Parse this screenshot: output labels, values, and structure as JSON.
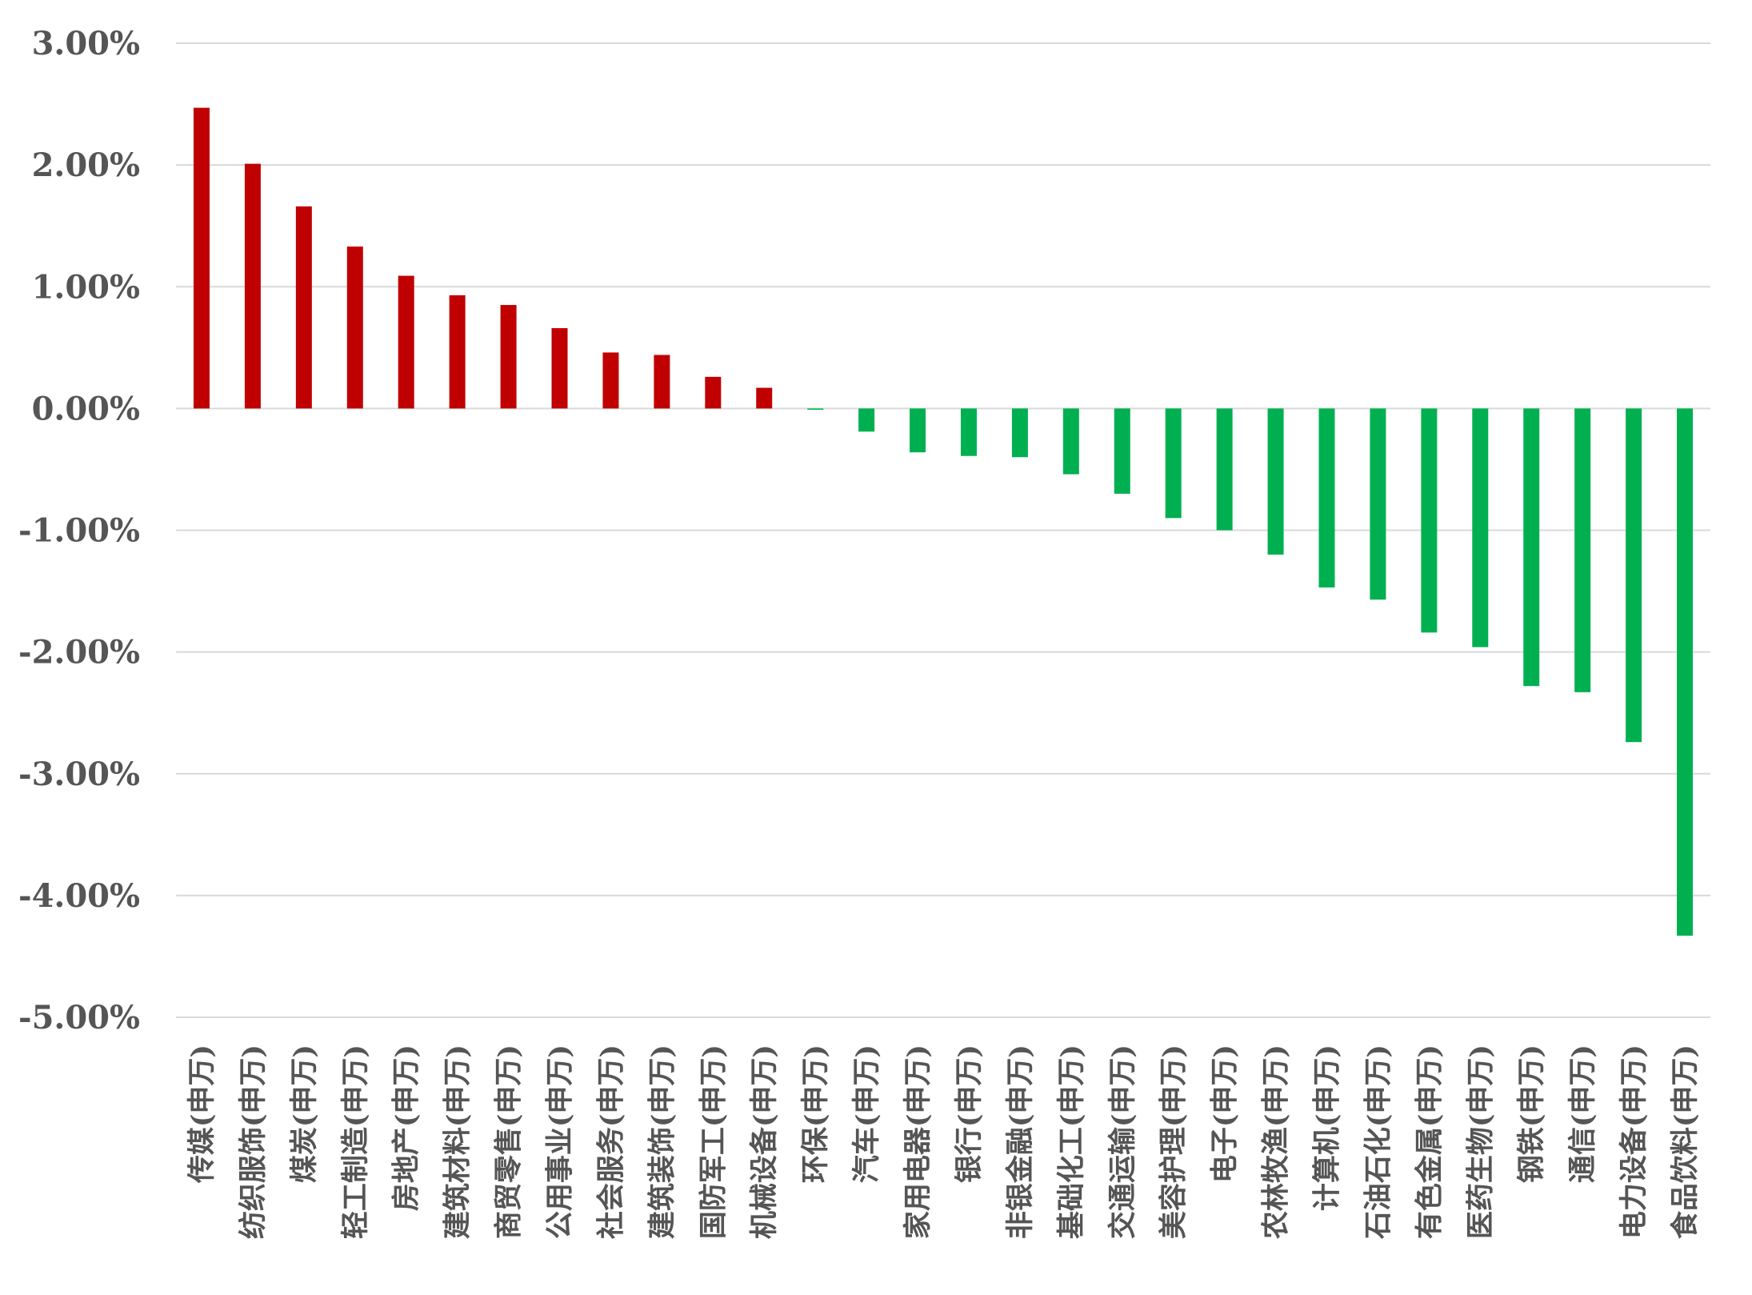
{
  "chart_data": {
    "type": "bar",
    "title": "",
    "xlabel": "",
    "ylabel": "",
    "ylim": [
      -5,
      3
    ],
    "yticks": [
      3,
      2,
      1,
      0,
      -1,
      -2,
      -3,
      -4,
      -5
    ],
    "ytick_labels": [
      "3.00%",
      "2.00%",
      "1.00%",
      "0.00%",
      "-1.00%",
      "-2.00%",
      "-3.00%",
      "-4.00%",
      "-5.00%"
    ],
    "grid": true,
    "legend": "none",
    "colors": {
      "positive": "#C00000",
      "negative": "#00B050",
      "grid": "#D9D9D9",
      "text": "#555555"
    },
    "categories": [
      "传媒(申万)",
      "纺织服饰(申万)",
      "煤炭(申万)",
      "轻工制造(申万)",
      "房地产(申万)",
      "建筑材料(申万)",
      "商贸零售(申万)",
      "公用事业(申万)",
      "社会服务(申万)",
      "建筑装饰(申万)",
      "国防军工(申万)",
      "机械设备(申万)",
      "环保(申万)",
      "汽车(申万)",
      "家用电器(申万)",
      "银行(申万)",
      "非银金融(申万)",
      "基础化工(申万)",
      "交通运输(申万)",
      "美容护理(申万)",
      "电子(申万)",
      "农林牧渔(申万)",
      "计算机(申万)",
      "石油石化(申万)",
      "有色金属(申万)",
      "医药生物(申万)",
      "钢铁(申万)",
      "通信(申万)",
      "电力设备(申万)",
      "食品饮料(申万)"
    ],
    "values": [
      2.47,
      2.01,
      1.66,
      1.33,
      1.09,
      0.93,
      0.85,
      0.66,
      0.46,
      0.44,
      0.26,
      0.17,
      -0.01,
      -0.19,
      -0.36,
      -0.39,
      -0.4,
      -0.54,
      -0.7,
      -0.9,
      -1.0,
      -1.2,
      -1.47,
      -1.57,
      -1.84,
      -1.96,
      -2.28,
      -2.33,
      -2.74,
      -4.33
    ],
    "unit": "%"
  }
}
